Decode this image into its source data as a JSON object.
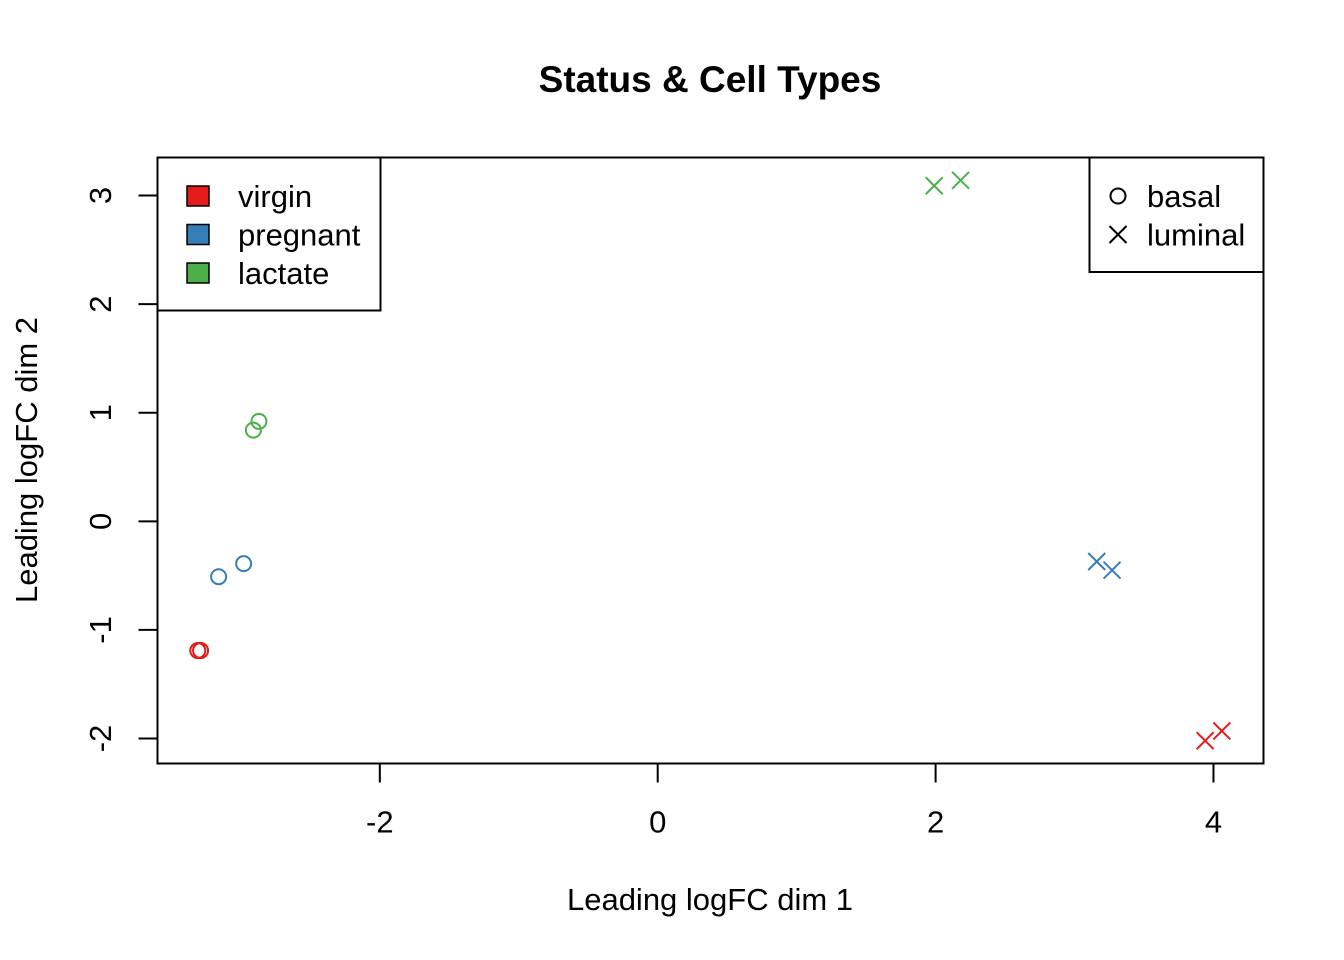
{
  "chart_data": {
    "type": "scatter",
    "title": "Status & Cell Types",
    "xlabel": "Leading logFC dim 1",
    "ylabel": "Leading logFC dim 2",
    "xlim": [
      -3.6,
      4.36
    ],
    "ylim": [
      -2.23,
      3.35
    ],
    "x_ticks": [
      -2,
      0,
      2,
      4
    ],
    "y_ticks": [
      -2,
      -1,
      0,
      1,
      2,
      3
    ],
    "grid": false,
    "colors": {
      "virgin": "#e41a1c",
      "pregnant": "#377eb8",
      "lactate": "#4daf4a"
    },
    "legend_status": {
      "position": "top-left",
      "entries": [
        {
          "label": "virgin",
          "color": "#e41a1c"
        },
        {
          "label": "pregnant",
          "color": "#377eb8"
        },
        {
          "label": "lactate",
          "color": "#4daf4a"
        }
      ]
    },
    "legend_celltype": {
      "position": "top-right",
      "entries": [
        {
          "label": "basal",
          "shape": "circle"
        },
        {
          "label": "luminal",
          "shape": "cross"
        }
      ]
    },
    "points": [
      {
        "status": "virgin",
        "celltype": "basal",
        "x": -3.31,
        "y": -1.19
      },
      {
        "status": "virgin",
        "celltype": "basal",
        "x": -3.29,
        "y": -1.19
      },
      {
        "status": "pregnant",
        "celltype": "basal",
        "x": -3.16,
        "y": -0.51
      },
      {
        "status": "pregnant",
        "celltype": "basal",
        "x": -2.98,
        "y": -0.39
      },
      {
        "status": "lactate",
        "celltype": "basal",
        "x": -2.91,
        "y": 0.84
      },
      {
        "status": "lactate",
        "celltype": "basal",
        "x": -2.87,
        "y": 0.92
      },
      {
        "status": "lactate",
        "celltype": "luminal",
        "x": 1.99,
        "y": 3.09
      },
      {
        "status": "lactate",
        "celltype": "luminal",
        "x": 2.18,
        "y": 3.14
      },
      {
        "status": "pregnant",
        "celltype": "luminal",
        "x": 3.16,
        "y": -0.37
      },
      {
        "status": "pregnant",
        "celltype": "luminal",
        "x": 3.27,
        "y": -0.45
      },
      {
        "status": "virgin",
        "celltype": "luminal",
        "x": 3.94,
        "y": -2.02
      },
      {
        "status": "virgin",
        "celltype": "luminal",
        "x": 4.06,
        "y": -1.93
      }
    ]
  }
}
